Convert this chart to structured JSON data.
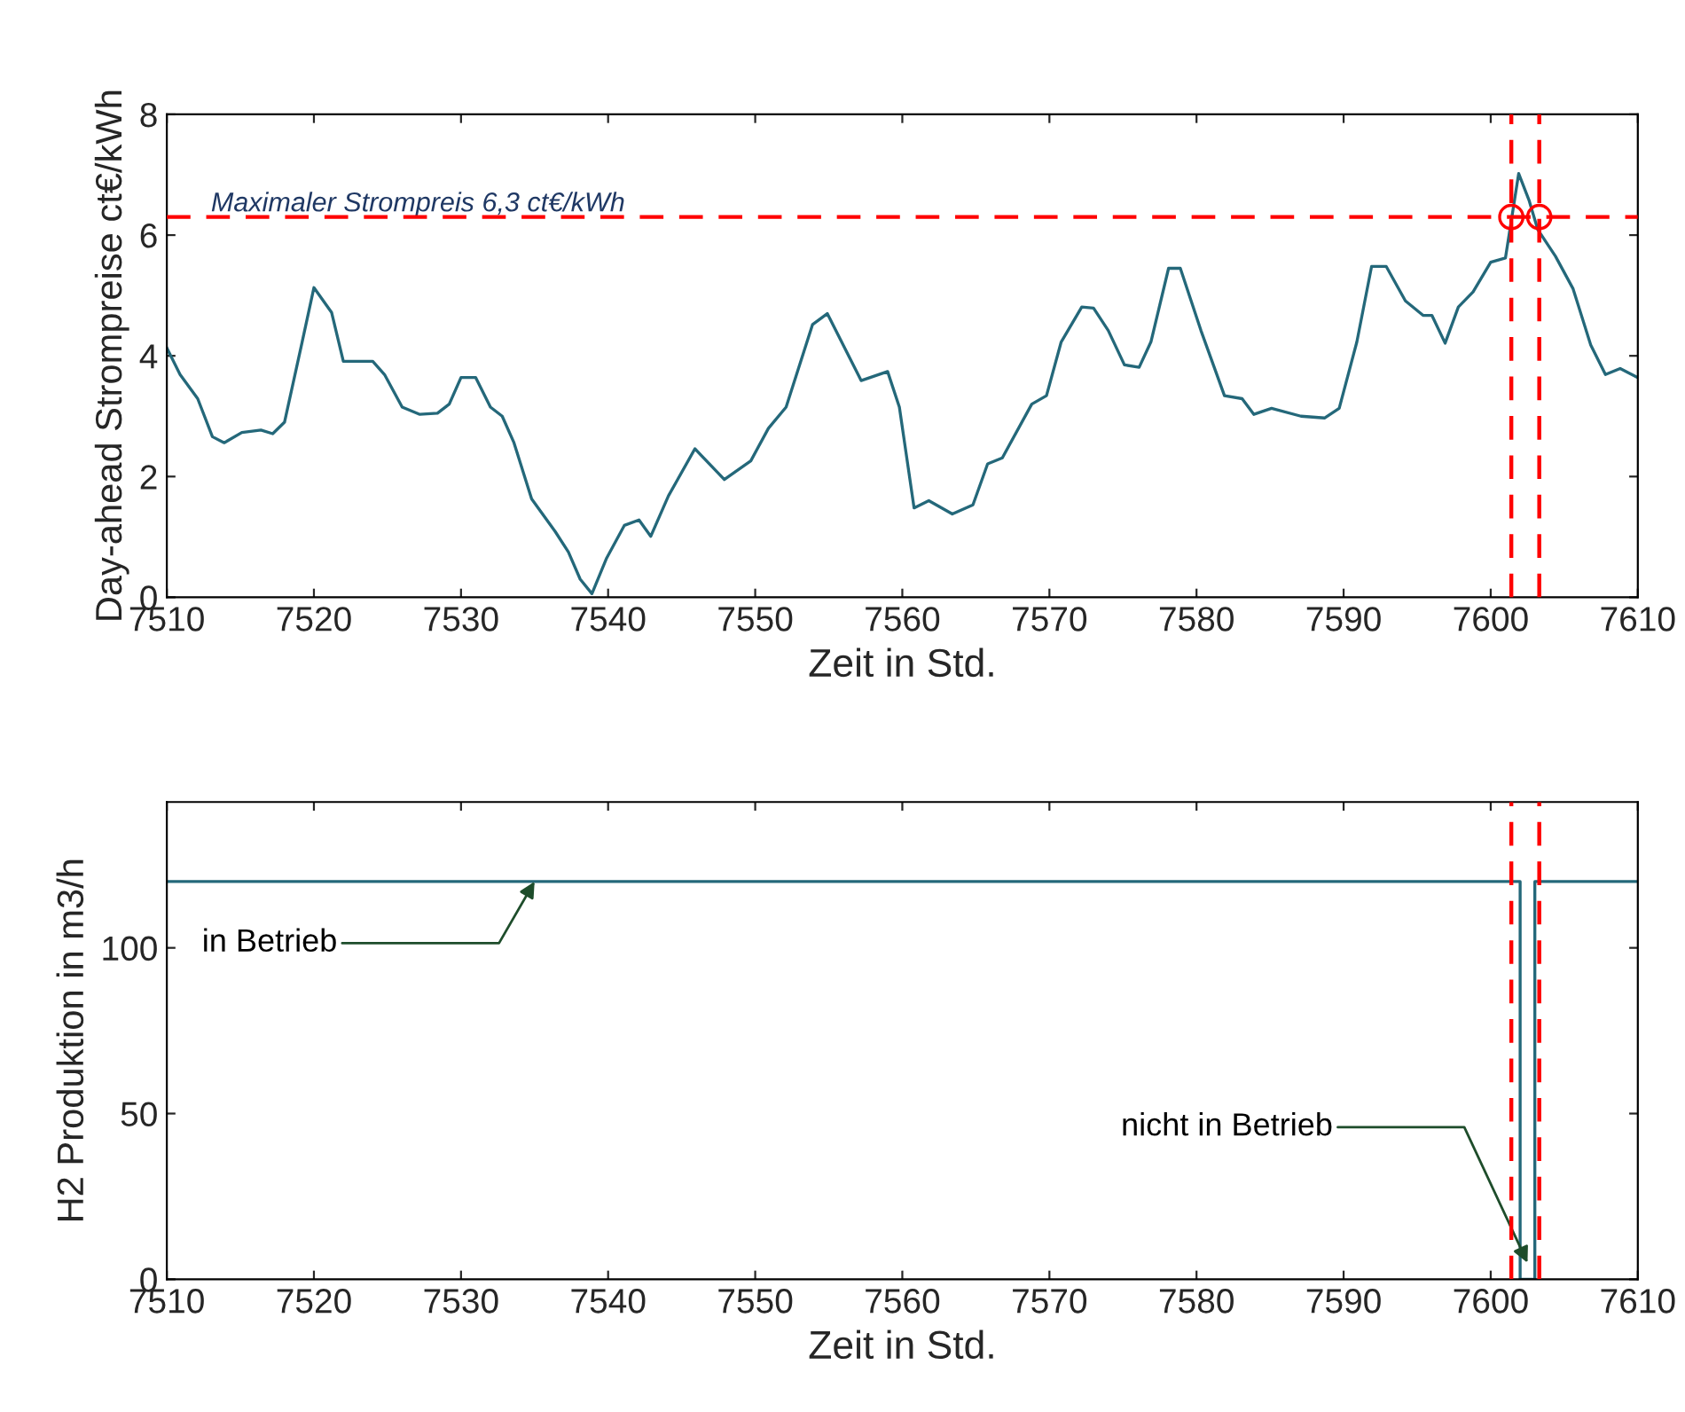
{
  "chart_data": [
    {
      "type": "line",
      "xlabel": "Zeit in Std.",
      "ylabel": "Day-ahead Strompreise ct€/kWh",
      "xlim": [
        7510,
        7610
      ],
      "xticks": [
        7510,
        7520,
        7530,
        7540,
        7550,
        7560,
        7570,
        7580,
        7590,
        7600,
        7610
      ],
      "ylim": [
        0,
        8
      ],
      "yticks": [
        0,
        2,
        4,
        6,
        8
      ],
      "grid": false,
      "series": [
        {
          "color": "#24687a",
          "x": [
            7510,
            7510.9,
            7512.1,
            7513.1,
            7513.9,
            7515.1,
            7516.4,
            7517.2,
            7518.0,
            7519.2,
            7520.0,
            7521.2,
            7522.0,
            7524.0,
            7524.8,
            7526.0,
            7527.2,
            7528.4,
            7529.2,
            7530.0,
            7531.0,
            7532.0,
            7532.8,
            7533.6,
            7534.8,
            7536.4,
            7537.3,
            7538.1,
            7538.9,
            7539.9,
            7541.1,
            7542.1,
            7542.9,
            7544.1,
            7545.9,
            7547.9,
            7549.7,
            7550.9,
            7552.1,
            7553.9,
            7554.9,
            7557.2,
            7559.0,
            7559.8,
            7560.8,
            7561.8,
            7563.4,
            7564.8,
            7565.8,
            7566.8,
            7568.8,
            7569.8,
            7570.8,
            7572.2,
            7573.0,
            7574.0,
            7575.1,
            7576.1,
            7576.9,
            7578.1,
            7578.9,
            7580.3,
            7581.9,
            7583.1,
            7583.9,
            7585.1,
            7587.1,
            7588.7,
            7589.7,
            7590.9,
            7591.9,
            7592.9,
            7594.2,
            7595.4,
            7596.0,
            7596.9,
            7597.8,
            7598.8,
            7600.0,
            7601.0,
            7601.4,
            7601.9,
            7602.6,
            7603.2,
            7604.4,
            7605.6,
            7606.8,
            7607.8,
            7608.8,
            7610
          ],
          "values": [
            4.13,
            3.69,
            3.29,
            2.66,
            2.56,
            2.73,
            2.77,
            2.71,
            2.9,
            4.23,
            5.13,
            4.72,
            3.91,
            3.91,
            3.69,
            3.15,
            3.03,
            3.05,
            3.2,
            3.64,
            3.64,
            3.15,
            3.0,
            2.56,
            1.63,
            1.09,
            0.75,
            0.3,
            0.06,
            0.65,
            1.19,
            1.28,
            1.01,
            1.68,
            2.46,
            1.95,
            2.26,
            2.8,
            3.15,
            4.52,
            4.7,
            3.59,
            3.74,
            3.15,
            1.48,
            1.6,
            1.38,
            1.53,
            2.21,
            2.31,
            3.2,
            3.34,
            4.23,
            4.81,
            4.79,
            4.42,
            3.85,
            3.81,
            4.23,
            5.45,
            5.45,
            4.42,
            3.34,
            3.29,
            3.03,
            3.13,
            3.0,
            2.97,
            3.13,
            4.23,
            5.48,
            5.48,
            4.91,
            4.67,
            4.67,
            4.21,
            4.81,
            5.06,
            5.55,
            5.62,
            6.24,
            7.02,
            6.58,
            6.09,
            5.65,
            5.11,
            4.18,
            3.69,
            3.79,
            3.64
          ]
        },
        {
          "type": "scatter",
          "color": "#ff0000",
          "marker": "circle",
          "x": [
            7601.4,
            7603.3
          ],
          "values": [
            6.3,
            6.3
          ]
        }
      ],
      "ref_lines": [
        {
          "axis": "y",
          "value": 6.3,
          "label": "Maximaler Strompreis 6,3 ct€/kWh",
          "color": "#ff0000",
          "line_style": "dashed"
        },
        {
          "axis": "x",
          "value": 7601.4,
          "color": "#ff0000",
          "line_style": "dashed"
        },
        {
          "axis": "x",
          "value": 7603.3,
          "color": "#ff0000",
          "line_style": "dashed"
        }
      ]
    },
    {
      "type": "line",
      "xlabel": "Zeit in Std.",
      "ylabel": "H2 Produktion in m3/h",
      "xlim": [
        7510,
        7610
      ],
      "xticks": [
        7510,
        7520,
        7530,
        7540,
        7550,
        7560,
        7570,
        7580,
        7590,
        7600,
        7610
      ],
      "ylim": [
        0,
        144
      ],
      "yticks": [
        0,
        50,
        100
      ],
      "grid": false,
      "series": [
        {
          "color": "#24687a",
          "x": [
            7510,
            7602,
            7602,
            7603,
            7603,
            7610
          ],
          "values": [
            120,
            120,
            0,
            0,
            120,
            120
          ]
        }
      ],
      "ref_lines": [
        {
          "axis": "x",
          "value": 7601.4,
          "color": "#ff0000",
          "line_style": "dashed"
        },
        {
          "axis": "x",
          "value": 7603.3,
          "color": "#ff0000",
          "line_style": "dashed"
        }
      ],
      "annotations": [
        {
          "text": "in Betrieb",
          "x": 7535,
          "y": 120
        },
        {
          "text": "nicht in Betrieb",
          "x": 7602.5,
          "y": 5
        }
      ]
    }
  ]
}
